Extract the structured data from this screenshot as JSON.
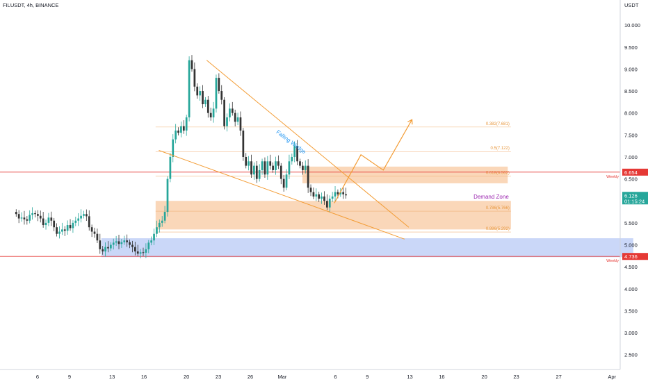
{
  "header": {
    "symbol_line": "FILUSDT, 4h, BINANCE",
    "axis_unit": "USDT"
  },
  "chart_data": {
    "type": "candlestick",
    "ylim": [
      2.1,
      10.35
    ],
    "y_ticks": [
      "10.000",
      "9.500",
      "9.000",
      "8.500",
      "8.000",
      "7.500",
      "7.000",
      "6.500",
      "6.000",
      "5.500",
      "5.000",
      "4.500",
      "4.000",
      "3.500",
      "3.000",
      "2.500"
    ],
    "y_tick_values": [
      10.0,
      9.5,
      9.0,
      8.5,
      8.0,
      7.5,
      7.0,
      6.5,
      6.0,
      5.5,
      5.0,
      4.5,
      4.0,
      3.5,
      3.0,
      2.5
    ],
    "x_ticks": [
      {
        "label": "6",
        "day": 6
      },
      {
        "label": "9",
        "day": 9
      },
      {
        "label": "13",
        "day": 13
      },
      {
        "label": "16",
        "day": 16
      },
      {
        "label": "20",
        "day": 20
      },
      {
        "label": "23",
        "day": 23
      },
      {
        "label": "26",
        "day": 26
      },
      {
        "label": "Mar",
        "day": 29
      },
      {
        "label": "6",
        "day": 34
      },
      {
        "label": "9",
        "day": 37
      },
      {
        "label": "13",
        "day": 41
      },
      {
        "label": "16",
        "day": 44
      },
      {
        "label": "20",
        "day": 48
      },
      {
        "label": "23",
        "day": 51
      },
      {
        "label": "27",
        "day": 55
      },
      {
        "label": "Apr",
        "day": 60
      }
    ],
    "price_labels": [
      {
        "value": "6.654",
        "y": 6.654,
        "color": "#e53935"
      },
      {
        "value": "6.126",
        "y": 6.126,
        "color": "#26a69a",
        "sub": "01:15:24"
      },
      {
        "value": "4.736",
        "y": 4.736,
        "color": "#e53935"
      }
    ],
    "weekly_lines": [
      {
        "label": "Weekly",
        "y": 6.654
      },
      {
        "label": "Weekly",
        "y": 4.736
      }
    ],
    "fib_levels": [
      {
        "label": "0.382(7.681)",
        "y": 7.681
      },
      {
        "label": "0.5(7.122)",
        "y": 7.122
      },
      {
        "label": "0.618(6.562)",
        "y": 6.562
      },
      {
        "label": "0.786(5.766)",
        "y": 5.766
      },
      {
        "label": "0.886(5.292)",
        "y": 5.292
      }
    ],
    "zones": [
      {
        "name": "demand-zone",
        "day_from": 17.1,
        "day_to": 50.5,
        "y_from": 5.35,
        "y_to": 6.0,
        "color": "#f5b680"
      },
      {
        "name": "supply-zone",
        "day_from": 30.9,
        "day_to": 50.2,
        "y_from": 6.4,
        "y_to": 6.78,
        "color": "#f5b680"
      },
      {
        "name": "support-zone",
        "day_from": 12.0,
        "day_to": 62.0,
        "y_from": 4.72,
        "y_to": 5.15,
        "color": "#9fb7f2"
      }
    ],
    "annotations": {
      "demand_zone": "Demand Zone",
      "falling_wedge": "Falling Wedge"
    },
    "wedge": {
      "upper": [
        [
          21.9,
          9.2
        ],
        [
          40.9,
          5.4
        ]
      ],
      "lower": [
        [
          17.4,
          7.15
        ],
        [
          40.5,
          5.13
        ]
      ]
    },
    "projection": [
      [
        33.9,
        5.95
      ],
      [
        36.4,
        7.05
      ],
      [
        38.5,
        6.7
      ],
      [
        41.2,
        7.85
      ]
    ],
    "closes": [
      5.7,
      5.6,
      5.62,
      5.58,
      5.55,
      5.68,
      5.72,
      5.7,
      5.66,
      5.6,
      5.45,
      5.5,
      5.62,
      5.55,
      5.4,
      5.25,
      5.3,
      5.35,
      5.32,
      5.45,
      5.38,
      5.5,
      5.55,
      5.6,
      5.66,
      5.7,
      5.65,
      5.4,
      5.3,
      5.25,
      5.1,
      4.9,
      4.85,
      4.95,
      4.92,
      5.0,
      5.05,
      5.08,
      5.02,
      5.06,
      5.1,
      5.06,
      5.0,
      4.95,
      4.85,
      4.8,
      4.83,
      4.82,
      4.9,
      5.05,
      5.1,
      5.25,
      5.4,
      5.5,
      5.55,
      5.75,
      6.5,
      7.0,
      7.4,
      7.6,
      7.55,
      7.7,
      7.6,
      7.9,
      9.2,
      9.0,
      8.6,
      8.4,
      8.5,
      8.2,
      8.3,
      8.0,
      7.9,
      8.1,
      8.8,
      8.5,
      8.3,
      7.7,
      7.9,
      8.1,
      8.0,
      7.8,
      7.9,
      7.6,
      7.0,
      6.8,
      6.9,
      6.6,
      6.8,
      6.5,
      6.7,
      6.9,
      6.6,
      6.9,
      6.8,
      6.7,
      6.9,
      6.8,
      6.5,
      6.3,
      6.6,
      6.9,
      7.0,
      7.25,
      6.9,
      6.8,
      6.7,
      6.8,
      6.3,
      6.2,
      6.1,
      6.15,
      6.05,
      6.1,
      6.0,
      5.85,
      6.05,
      6.1,
      6.2,
      6.15,
      6.2,
      6.15,
      6.126
    ]
  }
}
